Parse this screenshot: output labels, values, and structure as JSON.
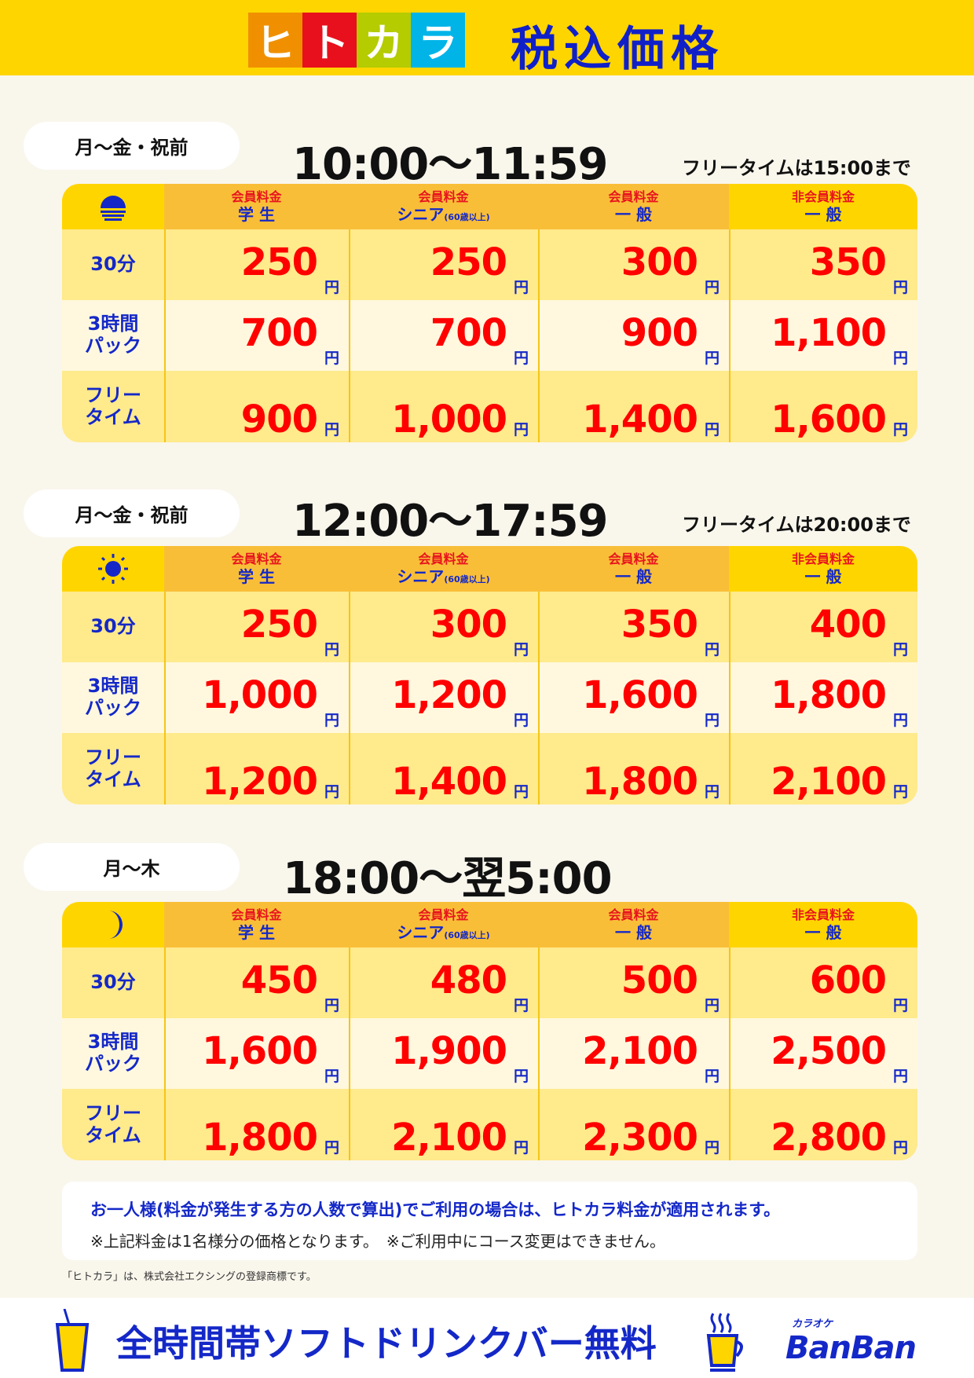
{
  "header": {
    "logo_text": "ヒトカラ",
    "logo_chars": [
      "ヒ",
      "ト",
      "カ",
      "ラ"
    ],
    "logo_colors": [
      "#F09000",
      "#E8101C",
      "#B4CC00",
      "#00B4E8"
    ],
    "title": "税込価格"
  },
  "columns": [
    {
      "kind": "会員料金",
      "label": "学 生",
      "sub": ""
    },
    {
      "kind": "会員料金",
      "label": "シニア",
      "sub": "(60歳以上)"
    },
    {
      "kind": "会員料金",
      "label": "一 般",
      "sub": ""
    },
    {
      "kind": "非会員料金",
      "label": "一 般",
      "sub": ""
    }
  ],
  "row_labels": [
    [
      "30分"
    ],
    [
      "3時間",
      "パック"
    ],
    [
      "フリー",
      "タイム"
    ]
  ],
  "currency": "円",
  "sections": [
    {
      "days": "月〜金・祝前",
      "time": "10:00〜11:59",
      "note": "フリータイムは15:00まで",
      "icon": "sunrise-icon",
      "prices": [
        [
          "250",
          "250",
          "300",
          "350"
        ],
        [
          "700",
          "700",
          "900",
          "1,100"
        ],
        [
          "900",
          "1,000",
          "1,400",
          "1,600"
        ]
      ]
    },
    {
      "days": "月〜金・祝前",
      "time": "12:00〜17:59",
      "note": "フリータイムは20:00まで",
      "icon": "sun-icon",
      "prices": [
        [
          "250",
          "300",
          "350",
          "400"
        ],
        [
          "1,000",
          "1,200",
          "1,600",
          "1,800"
        ],
        [
          "1,200",
          "1,400",
          "1,800",
          "2,100"
        ]
      ]
    },
    {
      "days": "月〜木",
      "time": "18:00〜翌5:00",
      "note": "",
      "icon": "moon-icon",
      "prices": [
        [
          "450",
          "480",
          "500",
          "600"
        ],
        [
          "1,600",
          "1,900",
          "2,100",
          "2,500"
        ],
        [
          "1,800",
          "2,100",
          "2,300",
          "2,800"
        ]
      ]
    }
  ],
  "notice": {
    "main": "お一人様(料金が発生する方の人数で算出)でご利用の場合は、ヒトカラ料金が適用されます。",
    "sub": "※上記料金は1名様分の価格となります。　※ご利用中にコース変更はできません。"
  },
  "trademark": "「ヒトカラ」は、株式会社エクシングの登録商標です。",
  "footer": {
    "text": "全時間帯ソフトドリンクバー無料",
    "brand_small": "カラオケ",
    "brand": "BanBan"
  },
  "colors": {
    "header_bg": "#FFD500",
    "member_bg": "#F9BE38",
    "row_a": "#FFEA8C",
    "row_b": "#FFF8DE",
    "price": "#FF0000",
    "text_blue": "#1428C8"
  }
}
